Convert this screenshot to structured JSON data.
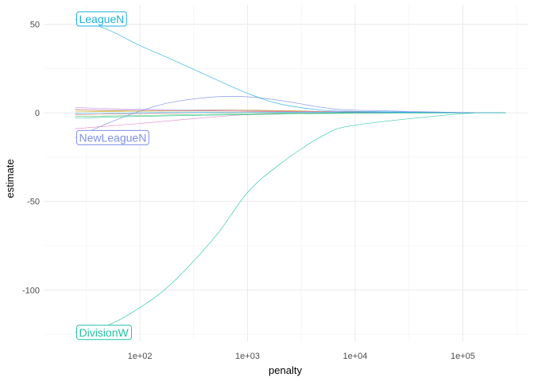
{
  "chart_data": {
    "type": "line",
    "xlabel": "penalty",
    "ylabel": "estimate",
    "x_scale": "log10",
    "xlim": [
      13,
      400000
    ],
    "ylim": [
      -129,
      61
    ],
    "x_ticks": [
      100,
      1000,
      10000,
      100000
    ],
    "x_tick_labels": [
      "1e+02",
      "1e+03",
      "1e+04",
      "1e+05"
    ],
    "y_ticks": [
      50,
      0,
      -50,
      -100
    ],
    "y_tick_labels": [
      "50",
      "0",
      "-50",
      "-100"
    ],
    "grid": true,
    "legend": "none",
    "series": [
      {
        "name": "LeagueN",
        "labeled": true,
        "color": "#1fb0e0",
        "x": [
          25,
          50,
          100,
          200,
          500,
          1000,
          2000,
          5000,
          10000,
          100000,
          250000
        ],
        "y": [
          53,
          47,
          38,
          30,
          19,
          11,
          5,
          1.5,
          0.8,
          0.1,
          0
        ]
      },
      {
        "name": "NewLeagueN",
        "labeled": true,
        "color": "#7f8fe8",
        "x": [
          25,
          50,
          100,
          200,
          500,
          1000,
          2000,
          5000,
          10000,
          100000,
          250000
        ],
        "y": [
          -14,
          -6,
          1,
          6,
          9,
          9,
          7,
          3,
          1.5,
          0.2,
          0
        ]
      },
      {
        "name": "DivisionW",
        "labeled": true,
        "color": "#22c4a2",
        "x": [
          25,
          50,
          100,
          200,
          500,
          1000,
          2000,
          5000,
          10000,
          100000,
          250000
        ],
        "y": [
          -124,
          -120,
          -110,
          -96,
          -70,
          -45,
          -29,
          -13,
          -7,
          -0.5,
          0
        ]
      },
      {
        "name": "",
        "labeled": false,
        "color": "#e377c2",
        "x": [
          25,
          100,
          1000,
          10000,
          250000
        ],
        "y": [
          -9,
          -6,
          -1,
          0,
          0
        ]
      },
      {
        "name": "",
        "labeled": false,
        "color": "#b0a0e8",
        "x": [
          25,
          100,
          1000,
          10000,
          250000
        ],
        "y": [
          3,
          2,
          1.5,
          0.5,
          0
        ]
      },
      {
        "name": "",
        "labeled": false,
        "color": "#3fbf5f",
        "x": [
          25,
          100,
          1000,
          10000,
          250000
        ],
        "y": [
          -2,
          -1.5,
          -0.5,
          0,
          0
        ]
      },
      {
        "name": "",
        "labeled": false,
        "color": "#c49a00",
        "x": [
          25,
          100,
          1000,
          10000,
          250000
        ],
        "y": [
          0.5,
          1,
          1.5,
          0.5,
          0
        ]
      },
      {
        "name": "",
        "labeled": false,
        "color": "#f8766d",
        "x": [
          25,
          100,
          1000,
          10000,
          250000
        ],
        "y": [
          -1,
          -0.5,
          0.5,
          0.5,
          0
        ]
      },
      {
        "name": "",
        "labeled": false,
        "color": "#a3a500",
        "x": [
          25,
          100,
          1000,
          10000,
          250000
        ],
        "y": [
          1.5,
          1,
          1,
          0.5,
          0
        ]
      },
      {
        "name": "",
        "labeled": false,
        "color": "#00b0f6",
        "x": [
          25,
          100,
          1000,
          10000,
          250000
        ],
        "y": [
          -0.5,
          0,
          0.3,
          0.2,
          0
        ]
      },
      {
        "name": "",
        "labeled": false,
        "color": "#e76bf3",
        "x": [
          25,
          100,
          1000,
          10000,
          250000
        ],
        "y": [
          2,
          1.5,
          1,
          0.5,
          0
        ]
      },
      {
        "name": "",
        "labeled": false,
        "color": "#00bf7d",
        "x": [
          25,
          100,
          1000,
          10000,
          250000
        ],
        "y": [
          -3,
          -2,
          -1,
          -0.2,
          0
        ]
      }
    ]
  }
}
